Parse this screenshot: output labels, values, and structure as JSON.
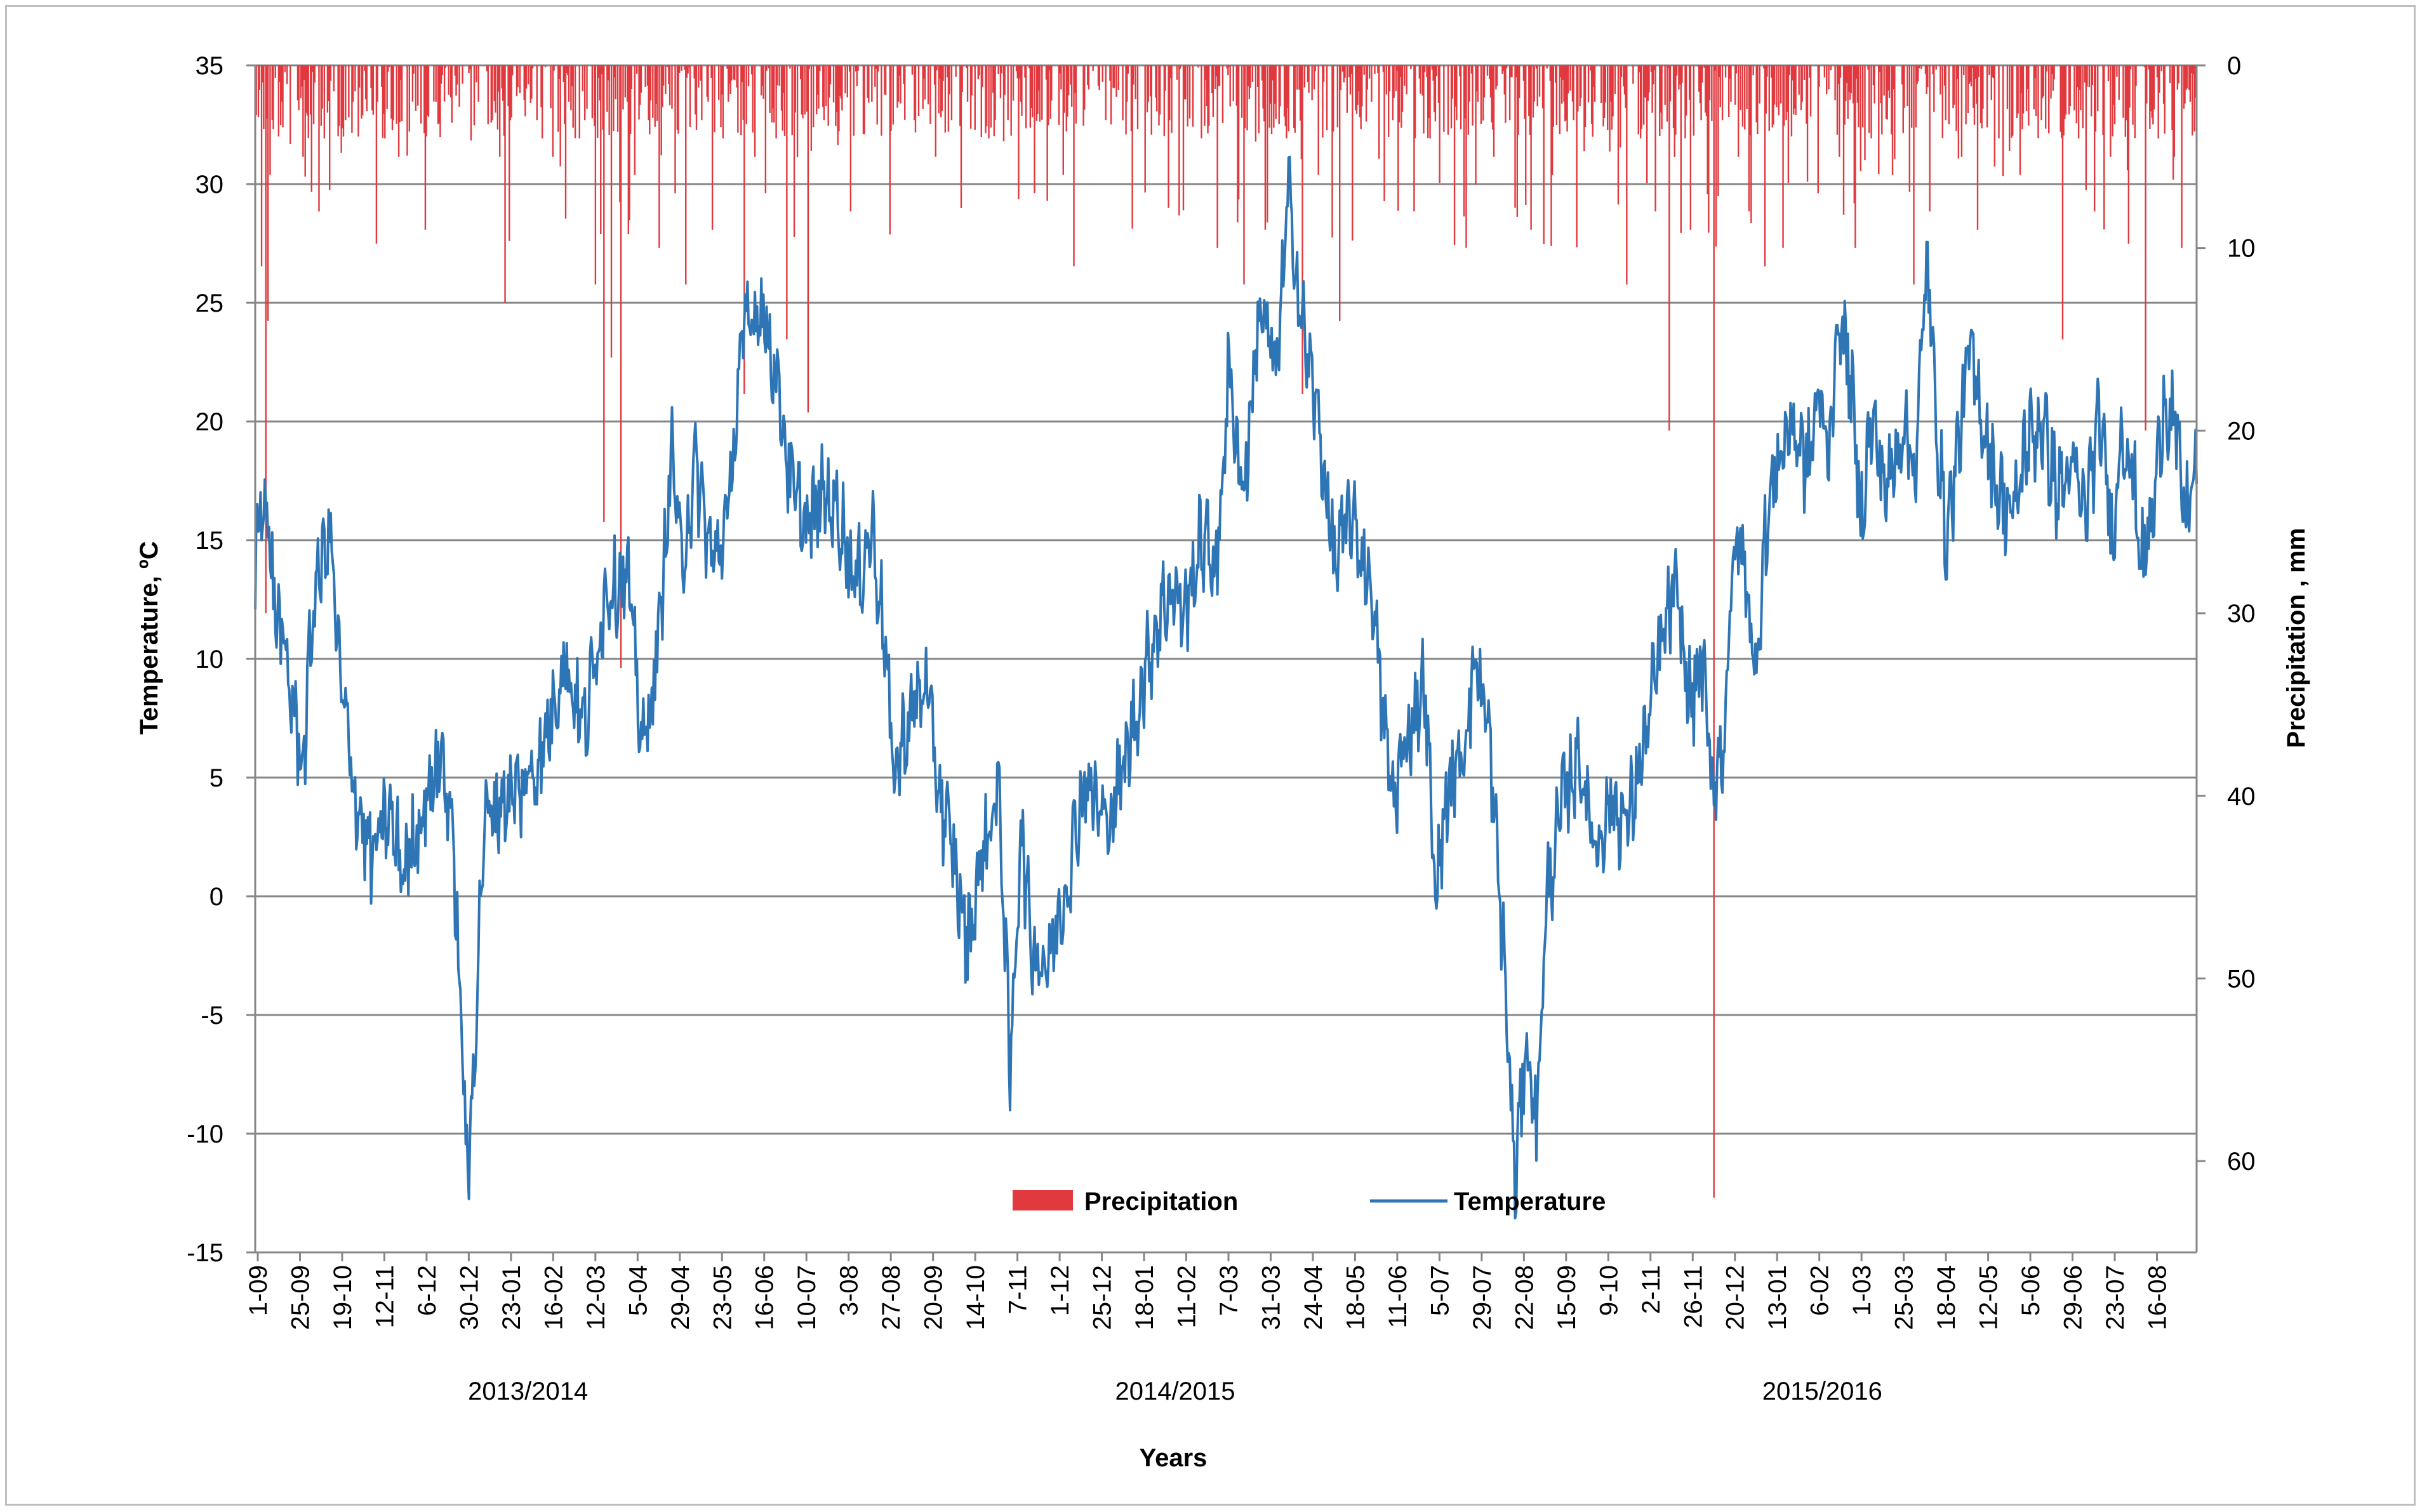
{
  "chart_data": {
    "type": "line+bar",
    "xlabel": "Years",
    "ylabel_left": "Temperature, ºC",
    "ylabel_right": "Precipitation , mm",
    "left_axis": {
      "min": -15,
      "max": 35,
      "step": 5,
      "ticks": [
        35,
        30,
        25,
        20,
        15,
        10,
        5,
        0,
        -5,
        -10,
        -15
      ]
    },
    "right_axis": {
      "min": 0,
      "max": 65,
      "step": 10,
      "inverted": true,
      "ticks": [
        0,
        10,
        20,
        30,
        40,
        50,
        60
      ]
    },
    "grid": "horizontal",
    "legend_placement": "bottom-center",
    "x_range_days": [
      "1-09-2013",
      "31-08-2016"
    ],
    "x_tick_labels": [
      "1-09",
      "25-09",
      "19-10",
      "12-11",
      "6-12",
      "30-12",
      "23-01",
      "16-02",
      "12-03",
      "5-04",
      "29-04",
      "23-05",
      "16-06",
      "10-07",
      "3-08",
      "27-08",
      "20-09",
      "14-10",
      "7-11",
      "1-12",
      "25-12",
      "18-01",
      "11-02",
      "7-03",
      "31-03",
      "24-04",
      "18-05",
      "11-06",
      "5-07",
      "29-07",
      "22-08",
      "15-09",
      "9-10",
      "2-11",
      "26-11",
      "20-12",
      "13-01",
      "6-02",
      "1-03",
      "25-03",
      "18-04",
      "12-05",
      "5-06",
      "29-06",
      "23-07",
      "16-08"
    ],
    "season_labels": [
      "2013/2014",
      "2014/2015",
      "2015/2016"
    ],
    "series": [
      {
        "name": "Precipitation",
        "kind": "bar",
        "axis": "right",
        "color": "#e0393e",
        "spikes": [
          [
            6,
            11
          ],
          [
            10,
            30
          ],
          [
            12,
            14
          ],
          [
            14,
            6
          ],
          [
            16,
            3
          ],
          [
            25,
            2
          ],
          [
            45,
            5
          ],
          [
            60,
            8
          ],
          [
            65,
            4
          ],
          [
            85,
            3
          ],
          [
            92,
            2
          ],
          [
            115,
            2
          ],
          [
            122,
            4
          ],
          [
            130,
            3
          ],
          [
            135,
            5
          ],
          [
            160,
            9
          ],
          [
            170,
            2
          ],
          [
            175,
            1
          ],
          [
            195,
            1
          ],
          [
            210,
            2
          ],
          [
            230,
            5
          ],
          [
            235,
            13
          ],
          [
            240,
            3
          ],
          [
            265,
            3
          ],
          [
            270,
            4
          ],
          [
            280,
            5
          ],
          [
            295,
            2
          ],
          [
            305,
            4
          ],
          [
            310,
            3
          ],
          [
            320,
            12
          ],
          [
            328,
            25
          ],
          [
            335,
            16
          ],
          [
            344,
            33
          ],
          [
            350,
            2
          ],
          [
            357,
            6
          ],
          [
            370,
            3
          ],
          [
            380,
            10
          ],
          [
            395,
            7
          ],
          [
            405,
            12
          ],
          [
            420,
            3
          ],
          [
            430,
            9
          ],
          [
            440,
            4
          ],
          [
            445,
            2
          ],
          [
            460,
            18
          ],
          [
            470,
            5
          ],
          [
            480,
            7
          ],
          [
            490,
            4
          ],
          [
            500,
            15
          ],
          [
            520,
            19
          ],
          [
            535,
            3
          ],
          [
            560,
            8
          ],
          [
            580,
            2
          ],
          [
            605,
            2
          ],
          [
            620,
            3
          ],
          [
            640,
            5
          ],
          [
            655,
            3
          ],
          [
            670,
            2
          ],
          [
            690,
            4
          ],
          [
            708,
            3
          ],
          [
            720,
            2
          ],
          [
            760,
            6
          ],
          [
            770,
            11
          ],
          [
            800,
            3
          ],
          [
            820,
            2
          ],
          [
            840,
            2
          ],
          [
            860,
            3
          ],
          [
            890,
            4
          ],
          [
            905,
            10
          ],
          [
            930,
            12
          ],
          [
            950,
            9
          ],
          [
            970,
            4
          ],
          [
            985,
            18
          ],
          [
            1000,
            6
          ],
          [
            1020,
            14
          ],
          [
            1050,
            2
          ],
          [
            1070,
            3
          ],
          [
            1090,
            8
          ],
          [
            1105,
            4
          ],
          [
            1130,
            3
          ],
          [
            1150,
            2
          ],
          [
            1165,
            5
          ],
          [
            1180,
            3
          ],
          [
            1200,
            9
          ],
          [
            1220,
            6
          ],
          [
            1240,
            3
          ],
          [
            1260,
            2
          ],
          [
            1275,
            2
          ],
          [
            1290,
            12
          ],
          [
            1303,
            4
          ],
          [
            1317,
            8
          ],
          [
            1330,
            20
          ],
          [
            1345,
            4
          ],
          [
            1350,
            9
          ],
          [
            1360,
            3
          ],
          [
            1372,
            62
          ],
          [
            1380,
            3
          ],
          [
            1388,
            2
          ],
          [
            1395,
            5
          ],
          [
            1405,
            8
          ],
          [
            1420,
            11
          ],
          [
            1440,
            3
          ],
          [
            1455,
            2
          ],
          [
            1470,
            7
          ],
          [
            1490,
            5
          ],
          [
            1505,
            10
          ],
          [
            1520,
            4
          ],
          [
            1540,
            6
          ],
          [
            1560,
            12
          ],
          [
            1575,
            8
          ],
          [
            1590,
            3
          ],
          [
            1605,
            5
          ],
          [
            1620,
            9
          ],
          [
            1640,
            4
          ],
          [
            1660,
            6
          ],
          [
            1680,
            3
          ],
          [
            1700,
            15
          ],
          [
            1715,
            4
          ],
          [
            1730,
            8
          ],
          [
            1745,
            5
          ],
          [
            1760,
            3
          ],
          [
            1778,
            20
          ],
          [
            1790,
            4
          ],
          [
            1805,
            5
          ],
          [
            1812,
            10
          ],
          [
            1820,
            2
          ],
          [
            1830,
            5
          ]
        ],
        "noise_max_mm": 4
      },
      {
        "name": "Temperature",
        "kind": "line",
        "axis": "left",
        "color": "#2e75b6",
        "anchors": [
          [
            0,
            13.5
          ],
          [
            5,
            17.2
          ],
          [
            10,
            16.5
          ],
          [
            18,
            12.5
          ],
          [
            30,
            9.5
          ],
          [
            45,
            5.5
          ],
          [
            55,
            12.5
          ],
          [
            70,
            15.5
          ],
          [
            80,
            9
          ],
          [
            95,
            4
          ],
          [
            110,
            1.5
          ],
          [
            125,
            3.5
          ],
          [
            140,
            1
          ],
          [
            160,
            4
          ],
          [
            175,
            6
          ],
          [
            185,
            3
          ],
          [
            195,
            -6.5
          ],
          [
            200,
            -12.3
          ],
          [
            206,
            -6.5
          ],
          [
            215,
            3
          ],
          [
            230,
            4
          ],
          [
            250,
            4.5
          ],
          [
            270,
            6
          ],
          [
            290,
            10
          ],
          [
            310,
            7
          ],
          [
            330,
            13
          ],
          [
            350,
            13.5
          ],
          [
            365,
            6
          ],
          [
            380,
            11
          ],
          [
            392,
            19
          ],
          [
            400,
            14
          ],
          [
            415,
            18
          ],
          [
            430,
            14
          ],
          [
            445,
            16
          ],
          [
            455,
            22
          ],
          [
            462,
            24
          ],
          [
            475,
            25
          ],
          [
            490,
            22
          ],
          [
            505,
            17
          ],
          [
            520,
            15.5
          ],
          [
            535,
            17
          ],
          [
            550,
            16
          ],
          [
            565,
            13
          ],
          [
            580,
            15.5
          ],
          [
            592,
            11
          ],
          [
            600,
            5
          ],
          [
            615,
            7.5
          ],
          [
            630,
            9
          ],
          [
            645,
            4
          ],
          [
            655,
            2
          ],
          [
            670,
            -2
          ],
          [
            685,
            2
          ],
          [
            700,
            4.5
          ],
          [
            710,
            -7.7
          ],
          [
            720,
            3
          ],
          [
            730,
            -2
          ],
          [
            745,
            -3
          ],
          [
            765,
            1
          ],
          [
            780,
            5
          ],
          [
            800,
            3
          ],
          [
            815,
            5
          ],
          [
            830,
            8
          ],
          [
            845,
            11
          ],
          [
            860,
            13
          ],
          [
            875,
            12
          ],
          [
            890,
            15
          ],
          [
            905,
            14
          ],
          [
            915,
            22
          ],
          [
            930,
            17
          ],
          [
            945,
            25
          ],
          [
            960,
            22
          ],
          [
            972,
            29.5
          ],
          [
            985,
            24
          ],
          [
            1000,
            20
          ],
          [
            1015,
            14
          ],
          [
            1030,
            16
          ],
          [
            1050,
            13
          ],
          [
            1060,
            8
          ],
          [
            1070,
            4
          ],
          [
            1085,
            7
          ],
          [
            1100,
            9
          ],
          [
            1110,
            0
          ],
          [
            1120,
            4
          ],
          [
            1135,
            6
          ],
          [
            1148,
            10
          ],
          [
            1160,
            7
          ],
          [
            1175,
            -3
          ],
          [
            1185,
            -12.2
          ],
          [
            1195,
            -6
          ],
          [
            1205,
            -9.5
          ],
          [
            1215,
            0
          ],
          [
            1230,
            4
          ],
          [
            1245,
            6
          ],
          [
            1260,
            2
          ],
          [
            1275,
            4
          ],
          [
            1290,
            3
          ],
          [
            1305,
            6
          ],
          [
            1320,
            10
          ],
          [
            1335,
            13
          ],
          [
            1350,
            8
          ],
          [
            1360,
            10
          ],
          [
            1370,
            5
          ],
          [
            1380,
            6
          ],
          [
            1392,
            15
          ],
          [
            1402,
            14
          ],
          [
            1410,
            9
          ],
          [
            1420,
            15
          ],
          [
            1430,
            18
          ],
          [
            1445,
            20
          ],
          [
            1460,
            18
          ],
          [
            1470,
            21
          ],
          [
            1480,
            19
          ],
          [
            1490,
            24.5
          ],
          [
            1500,
            22
          ],
          [
            1510,
            16
          ],
          [
            1520,
            20
          ],
          [
            1535,
            17
          ],
          [
            1550,
            20
          ],
          [
            1562,
            18
          ],
          [
            1572,
            27
          ],
          [
            1580,
            21
          ],
          [
            1590,
            15
          ],
          [
            1602,
            19
          ],
          [
            1612,
            23
          ],
          [
            1625,
            20
          ],
          [
            1640,
            17
          ],
          [
            1655,
            16
          ],
          [
            1665,
            19
          ],
          [
            1680,
            20
          ],
          [
            1695,
            17
          ],
          [
            1710,
            18
          ],
          [
            1720,
            16
          ],
          [
            1735,
            20
          ],
          [
            1748,
            15
          ],
          [
            1755,
            20
          ],
          [
            1765,
            18
          ],
          [
            1775,
            14
          ],
          [
            1785,
            16
          ],
          [
            1795,
            21
          ],
          [
            1805,
            20
          ],
          [
            1815,
            16
          ],
          [
            1826,
            18
          ]
        ],
        "noise_amplitude": 1.6
      }
    ]
  },
  "legend": {
    "items": [
      "Precipitation",
      "Temperature"
    ]
  }
}
